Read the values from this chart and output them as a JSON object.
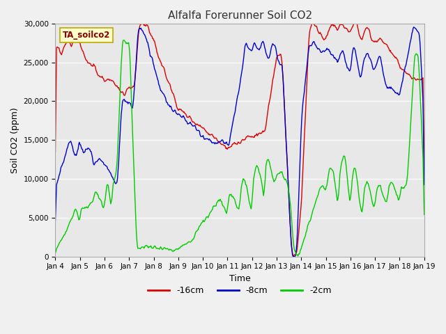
{
  "title": "Alfalfa Forerunner Soil CO2",
  "xlabel": "Time",
  "ylabel": "Soil CO2 (ppm)",
  "ylim": [
    0,
    30000
  ],
  "yticks": [
    0,
    5000,
    10000,
    15000,
    20000,
    25000,
    30000
  ],
  "xtick_labels": [
    "Jan 4",
    "Jan 5",
    "Jan 6",
    "Jan 7",
    "Jan 8",
    "Jan 9",
    "Jan 10",
    "Jan 11",
    "Jan 12",
    "Jan 13",
    "Jan 14",
    "Jan 15",
    "Jan 16",
    "Jan 17",
    "Jan 18",
    "Jan 19"
  ],
  "legend_entries": [
    "-16cm",
    "-8cm",
    "-2cm"
  ],
  "line_colors": [
    "#dd0000",
    "#0000cc",
    "#00cc00"
  ],
  "watermark": "TA_soilco2",
  "fig_bg_color": "#f0f0f0",
  "plot_bg_color": "#e8e8e8",
  "grid_color": "#ffffff",
  "title_color": "#333333"
}
